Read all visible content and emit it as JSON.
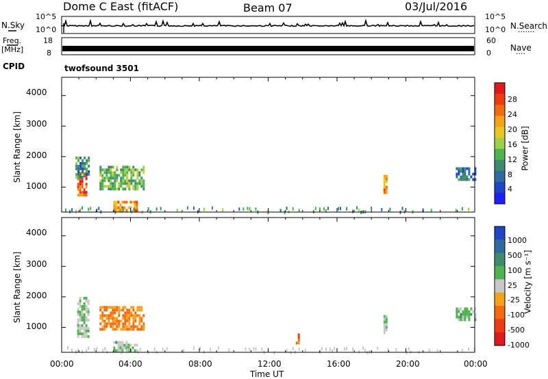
{
  "header": {
    "title": "Dome C East (fitACF)",
    "beam": "Beam 07",
    "date": "03/Jul/2016"
  },
  "ops_panels": {
    "nsky_label": "N.Sky",
    "nsky_ticks": [
      "10^5",
      "10^0"
    ],
    "nsearch_label": "N.Search",
    "nsearch_ticks": [
      "10^5",
      "10^0"
    ],
    "freq_label": "Freq.",
    "freq_unit": "[MHz]",
    "freq_ticks": [
      "18",
      "8"
    ],
    "nave_label": "Nave",
    "nave_ticks": [
      "60",
      "0"
    ],
    "cpid_label": "CPID",
    "cpid_value": "twofsound 3501"
  },
  "power_panel": {
    "ylabel": "Slant Range [km]",
    "yticks": [
      "4000",
      "3000",
      "2000",
      "1000"
    ],
    "colorbar_label": "Power [dB]",
    "colorbar_ticks": [
      "28",
      "24",
      "20",
      "16",
      "12",
      "8",
      "4"
    ],
    "colorbar_colors": [
      "#e31a1c",
      "#f03c10",
      "#f46a0e",
      "#f7a01a",
      "#e8c820",
      "#9bd24a",
      "#4fb44d",
      "#3f8c6c",
      "#2f6aa0",
      "#1f46c8",
      "#1f1fff"
    ]
  },
  "velocity_panel": {
    "ylabel": "Slant Range [km]",
    "yticks": [
      "4000",
      "3000",
      "2000",
      "1000"
    ],
    "colorbar_label": "Velocity [m s⁻¹]",
    "colorbar_ticks": [
      "1000",
      "500",
      "100",
      "25",
      "-25",
      "-100",
      "-500",
      "-1000"
    ],
    "colorbar_colors": [
      "#1f46c8",
      "#2f6aa0",
      "#3f8c6c",
      "#4fb44d",
      "#c8c8c8",
      "#f7a01a",
      "#f46a0e",
      "#f03c10",
      "#e31a1c"
    ]
  },
  "xaxis": {
    "ticks": [
      "00:00",
      "04:00",
      "08:00",
      "12:00",
      "16:00",
      "20:00",
      "00:00"
    ],
    "label": "Time UT"
  },
  "chart_data": {
    "type": "heatmap",
    "title": "Dome C East (fitACF)",
    "xlabel": "Time UT",
    "ylabel": "Slant Range [km]",
    "x_range_hours": [
      0,
      24
    ],
    "y_range_km": [
      180,
      4600
    ],
    "series": [
      {
        "name": "Power [dB]",
        "regions": [
          {
            "t0": 0.9,
            "t1": 1.4,
            "r0": 700,
            "r1": 1500,
            "value": 26
          },
          {
            "t0": 0.8,
            "t1": 1.6,
            "r0": 1300,
            "r1": 2000,
            "value": 10
          },
          {
            "t0": 2.2,
            "t1": 4.8,
            "r0": 900,
            "r1": 1700,
            "value": 14
          },
          {
            "t0": 3.0,
            "t1": 4.4,
            "r0": 250,
            "r1": 550,
            "value": 24
          },
          {
            "t0": 18.7,
            "t1": 18.9,
            "r0": 850,
            "r1": 1400,
            "value": 22
          },
          {
            "t0": 22.9,
            "t1": 24.0,
            "r0": 1250,
            "r1": 1650,
            "value": 8
          }
        ]
      },
      {
        "name": "Velocity [m s⁻¹]",
        "regions": [
          {
            "t0": 0.9,
            "t1": 1.6,
            "r0": 700,
            "r1": 2000,
            "value": 100
          },
          {
            "t0": 2.2,
            "t1": 4.8,
            "r0": 900,
            "r1": 1700,
            "value": -300
          },
          {
            "t0": 3.0,
            "t1": 4.4,
            "r0": 250,
            "r1": 550,
            "value": 150
          },
          {
            "t0": 13.6,
            "t1": 13.8,
            "r0": 500,
            "r1": 800,
            "value": -500
          },
          {
            "t0": 18.7,
            "t1": 18.9,
            "r0": 850,
            "r1": 1400,
            "value": 120
          },
          {
            "t0": 22.9,
            "t1": 24.0,
            "r0": 1250,
            "r1": 1650,
            "value": 200
          }
        ]
      }
    ],
    "zlim_power": [
      0,
      32
    ],
    "zlim_velocity": [
      -1000,
      1000
    ],
    "grid": false
  }
}
